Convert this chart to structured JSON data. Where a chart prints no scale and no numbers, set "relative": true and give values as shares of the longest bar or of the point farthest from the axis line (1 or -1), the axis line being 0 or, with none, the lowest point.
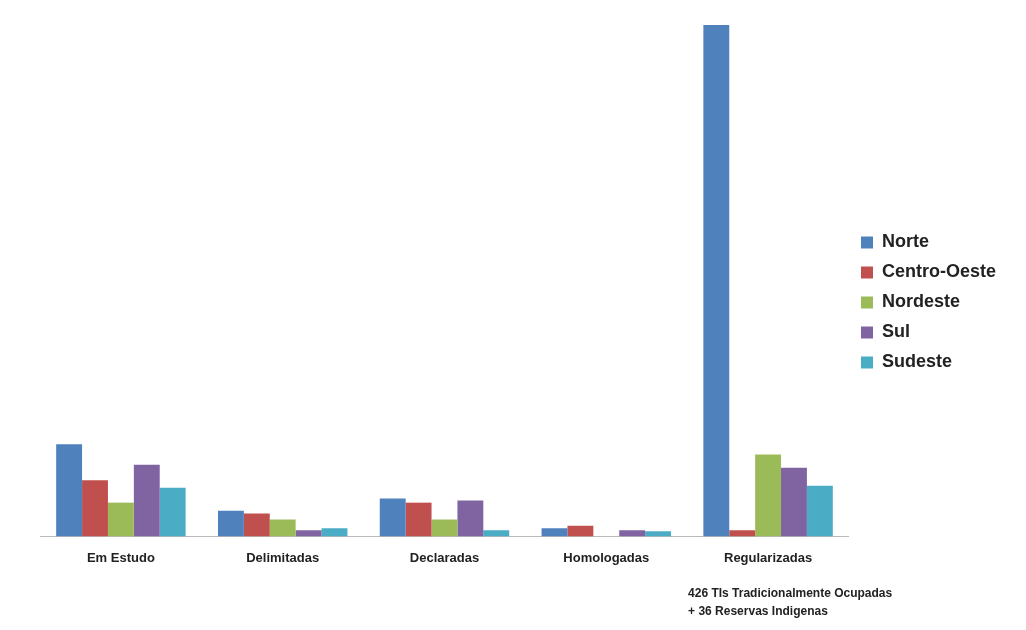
{
  "chart_data": {
    "type": "bar",
    "relative": true,
    "categories": [
      "Em Estudo",
      "Delimitadas",
      "Declaradas",
      "Homologadas",
      "Regularizadas"
    ],
    "series": [
      {
        "name": "Norte",
        "color": "#4f81bd",
        "values": [
          0.18,
          0.05,
          0.074,
          0.016,
          1
        ]
      },
      {
        "name": "Centro-Oeste",
        "color": "#c0504d",
        "values": [
          0.11,
          0.045,
          0.066,
          0.021,
          0.012
        ]
      },
      {
        "name": "Nordeste",
        "color": "#9bbb59",
        "values": [
          0.066,
          0.033,
          0.033,
          0,
          0.16
        ]
      },
      {
        "name": "Sul",
        "color": "#8064a2",
        "values": [
          0.14,
          0.012,
          0.07,
          0.012,
          0.134
        ]
      },
      {
        "name": "Sudeste",
        "color": "#4bacc6",
        "values": [
          0.095,
          0.016,
          0.012,
          0.01,
          0.099
        ]
      }
    ],
    "legend": "right",
    "annotations": [
      "426 TIs Tradicionalmente Ocupadas",
      "+ 36 Reservas Indigenas"
    ]
  }
}
